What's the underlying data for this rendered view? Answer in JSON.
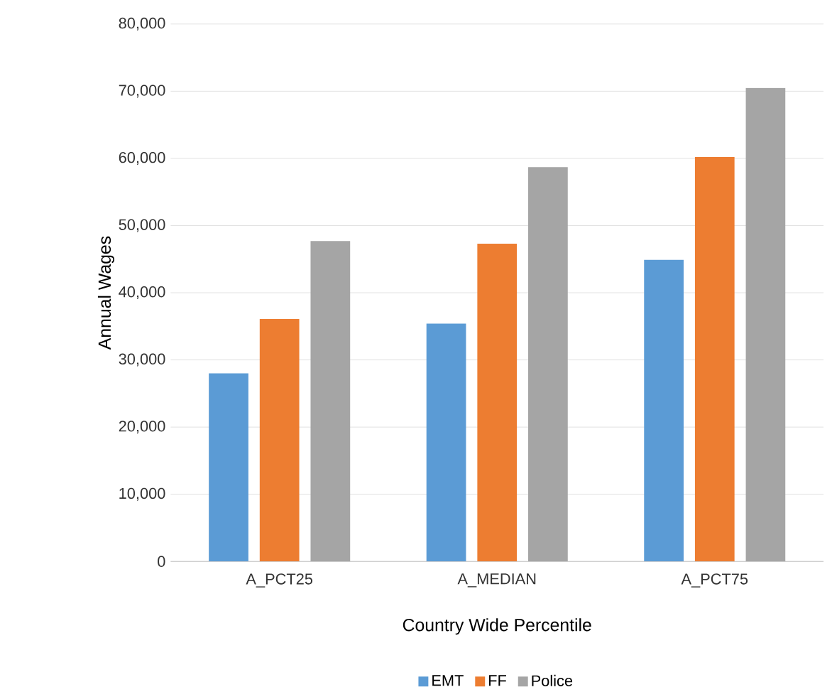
{
  "chart_data": {
    "type": "bar",
    "xlabel": "Country Wide Percentile",
    "ylabel": "Annual Wages",
    "categories": [
      "A_PCT25",
      "A_MEDIAN",
      "A_PCT75"
    ],
    "series": [
      {
        "name": "EMT",
        "color": "#5b9bd5",
        "values": [
          28000,
          35400,
          44900
        ]
      },
      {
        "name": "FF",
        "color": "#ed7d31",
        "values": [
          36100,
          47300,
          60200
        ]
      },
      {
        "name": "Police",
        "color": "#a5a5a5",
        "values": [
          47700,
          58700,
          70500
        ]
      }
    ],
    "ylim": [
      0,
      80000
    ],
    "yticks": [
      0,
      {
        "value": 10000,
        "label": "10,000"
      },
      {
        "value": 20000,
        "label": "20,000"
      },
      {
        "value": 30000,
        "label": "30,000"
      },
      {
        "value": 40000,
        "label": "40,000"
      },
      {
        "value": 50000,
        "label": "50,000"
      },
      {
        "value": 60000,
        "label": "60,000"
      },
      {
        "value": 70000,
        "label": "70,000"
      },
      {
        "value": 80000,
        "label": "80,000"
      }
    ],
    "grid": "y",
    "legend": "bottom"
  }
}
